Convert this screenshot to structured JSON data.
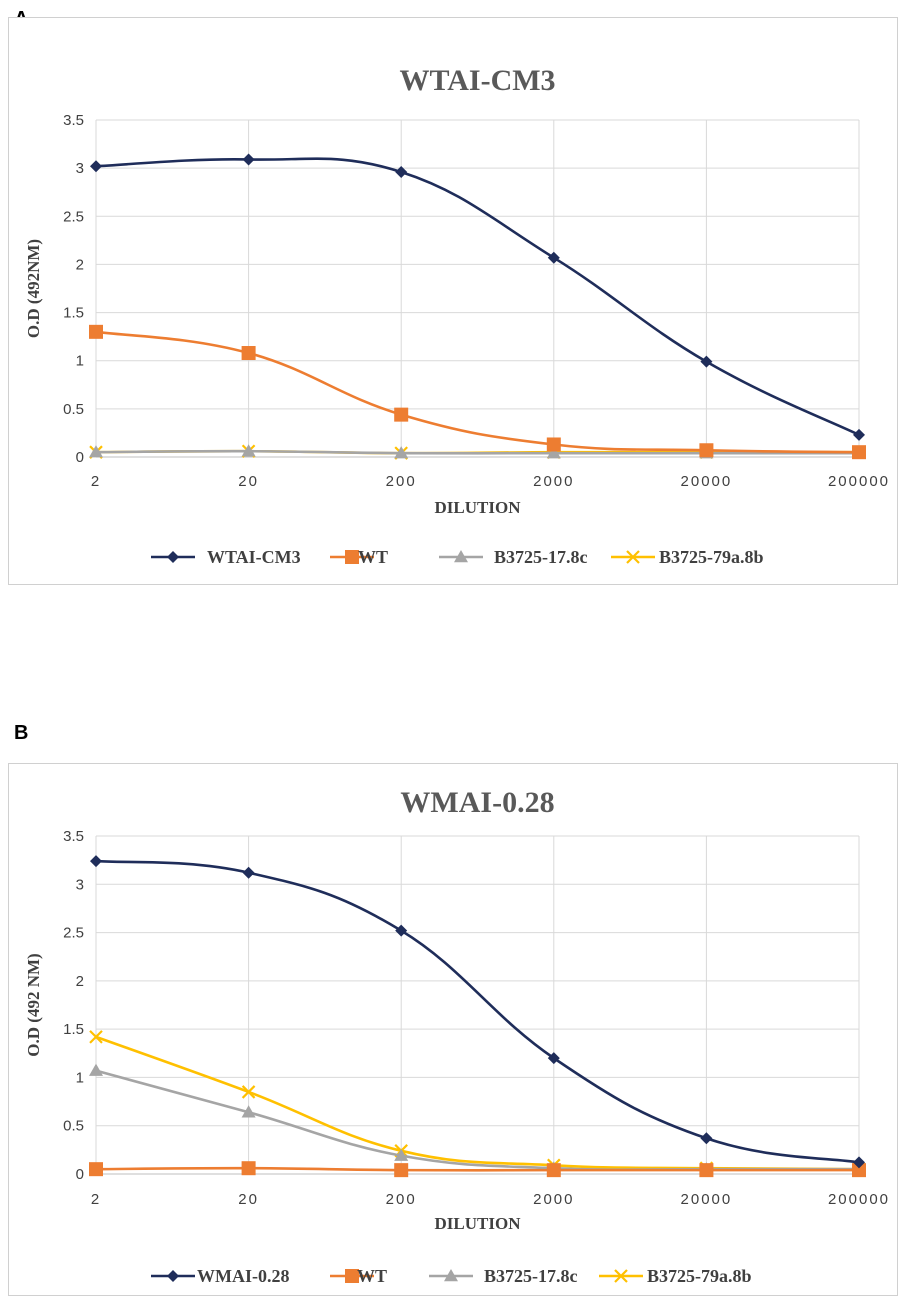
{
  "panels": {
    "a": {
      "letter": "A"
    },
    "b": {
      "letter": "B"
    }
  },
  "chart_data": [
    {
      "type": "line",
      "title": "WTAI-CM3",
      "xlabel": "DILUTION",
      "ylabel": "O.D (492NM)",
      "categories": [
        "2",
        "20",
        "200",
        "2000",
        "20000",
        "200000"
      ],
      "ylim": [
        0,
        3.5
      ],
      "yticks": [
        "0",
        "0.5",
        "1",
        "1.5",
        "2",
        "2.5",
        "3",
        "3.5"
      ],
      "grid": true,
      "legend_position": "bottom",
      "series": [
        {
          "name": "WTAI-CM3",
          "color": "#1f2d5a",
          "marker": "diamond",
          "values": [
            3.02,
            3.09,
            2.96,
            2.07,
            0.99,
            0.23
          ]
        },
        {
          "name": "WT",
          "color": "#ed7d31",
          "marker": "square",
          "values": [
            1.3,
            1.08,
            0.44,
            0.13,
            0.07,
            0.05
          ]
        },
        {
          "name": "B3725-17.8c",
          "color": "#a5a5a5",
          "marker": "triangle",
          "values": [
            0.05,
            0.06,
            0.04,
            0.04,
            0.04,
            0.04
          ]
        },
        {
          "name": "B3725-79a.8b",
          "color": "#ffc000",
          "marker": "x",
          "values": [
            0.05,
            0.06,
            0.04,
            0.05,
            0.05,
            0.05
          ]
        }
      ]
    },
    {
      "type": "line",
      "title": "WMAI-0.28",
      "xlabel": "DILUTION",
      "ylabel": "O.D (492 NM)",
      "categories": [
        "2",
        "20",
        "200",
        "2000",
        "20000",
        "200000"
      ],
      "ylim": [
        0,
        3.5
      ],
      "yticks": [
        "0",
        "0.5",
        "1",
        "1.5",
        "2",
        "2.5",
        "3",
        "3.5"
      ],
      "grid": true,
      "legend_position": "bottom",
      "series": [
        {
          "name": "WMAI-0.28",
          "color": "#1f2d5a",
          "marker": "diamond",
          "values": [
            3.24,
            3.12,
            2.52,
            1.2,
            0.37,
            0.12
          ]
        },
        {
          "name": "WT",
          "color": "#ed7d31",
          "marker": "square",
          "values": [
            0.05,
            0.06,
            0.04,
            0.04,
            0.04,
            0.04
          ]
        },
        {
          "name": "B3725-17.8c",
          "color": "#a5a5a5",
          "marker": "triangle",
          "values": [
            1.07,
            0.64,
            0.19,
            0.06,
            0.05,
            0.05
          ]
        },
        {
          "name": "B3725-79a.8b",
          "color": "#ffc000",
          "marker": "x",
          "values": [
            1.42,
            0.85,
            0.24,
            0.09,
            0.06,
            0.05
          ]
        }
      ]
    }
  ]
}
